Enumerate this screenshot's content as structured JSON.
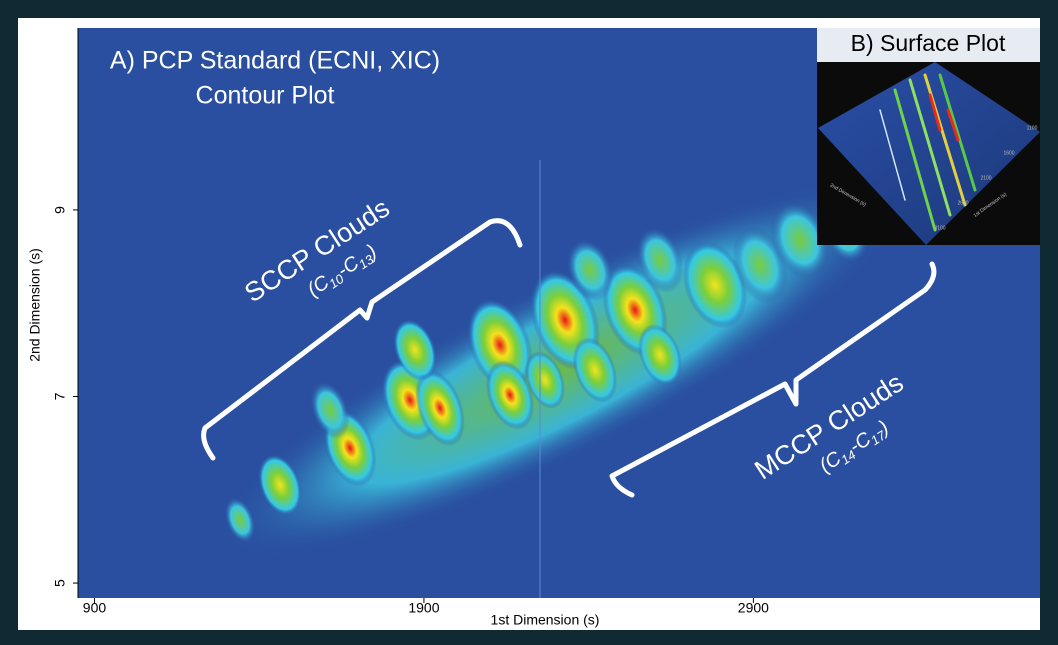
{
  "chart_data": {
    "type": "contour",
    "title": "A) PCP Standard (ECNI, XIC)",
    "subtitle": "Contour Plot",
    "x_label": "1st Dimension (s)",
    "y_label": "2nd Dimension (s)",
    "xlim": [
      850,
      3770
    ],
    "xticks": [
      900,
      1900,
      2900
    ],
    "ylim": [
      4.84,
      10.95
    ],
    "yticks": [
      5,
      7,
      9
    ],
    "annotations": [
      {
        "text": "SCCP Clouds",
        "sub": [
          "(C",
          "10",
          "-C",
          "13",
          ")"
        ]
      },
      {
        "text": "MCCP Clouds",
        "sub": [
          "(C",
          "14",
          "-C",
          "17",
          ")"
        ]
      }
    ],
    "inset": {
      "title": "B) Surface Plot",
      "x_label": "1st Dimension (s)",
      "y_label": "2nd Dimension (s)",
      "xticks": [
        "1100",
        "1600",
        "2100",
        "2600",
        "3100"
      ]
    }
  }
}
